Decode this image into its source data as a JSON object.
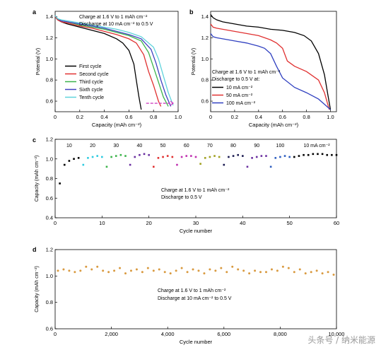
{
  "figure": {
    "watermark": "头条号 / 纳米能源"
  },
  "chart_data": [
    {
      "panel": "a",
      "type": "line",
      "xlabel": "Capacity (mAh cm⁻²)",
      "ylabel": "Potential (V)",
      "xlim": [
        0,
        1.0
      ],
      "ylim": [
        0.5,
        1.45
      ],
      "xticks": [
        "0",
        "0.2",
        "0.4",
        "0.6",
        "0.8",
        "1.0"
      ],
      "yticks": [
        "0.6",
        "0.8",
        "1.0",
        "1.2",
        "1.4"
      ],
      "annotation": [
        "Charge at 1.6 V to 1 mAh cm⁻²",
        "Discharge at 10 mA cm⁻² to 0.5 V"
      ],
      "legend_position": "bottom-left",
      "series": [
        {
          "name": "First cycle",
          "color": "#000000",
          "x": [
            0,
            0.02,
            0.05,
            0.1,
            0.2,
            0.3,
            0.4,
            0.5,
            0.55,
            0.6,
            0.64,
            0.66,
            0.68,
            0.7
          ],
          "y": [
            1.4,
            1.37,
            1.35,
            1.33,
            1.3,
            1.27,
            1.24,
            1.19,
            1.15,
            1.08,
            0.95,
            0.8,
            0.65,
            0.52
          ]
        },
        {
          "name": "Second cycle",
          "color": "#e03030",
          "x": [
            0,
            0.02,
            0.05,
            0.1,
            0.2,
            0.3,
            0.4,
            0.5,
            0.6,
            0.66,
            0.72,
            0.76,
            0.8,
            0.84,
            0.86
          ],
          "y": [
            1.4,
            1.37,
            1.35,
            1.34,
            1.31,
            1.29,
            1.26,
            1.23,
            1.19,
            1.15,
            1.04,
            0.88,
            0.75,
            0.6,
            0.55
          ]
        },
        {
          "name": "Third cycle",
          "color": "#3cb44b",
          "x": [
            0,
            0.02,
            0.05,
            0.1,
            0.2,
            0.3,
            0.4,
            0.5,
            0.6,
            0.7,
            0.76,
            0.8,
            0.84,
            0.88,
            0.92
          ],
          "y": [
            1.41,
            1.38,
            1.36,
            1.35,
            1.32,
            1.3,
            1.28,
            1.25,
            1.22,
            1.17,
            1.06,
            0.92,
            0.78,
            0.64,
            0.55
          ]
        },
        {
          "name": "Sixth cycle",
          "color": "#4040c0",
          "x": [
            0,
            0.02,
            0.05,
            0.1,
            0.2,
            0.3,
            0.4,
            0.5,
            0.6,
            0.7,
            0.78,
            0.82,
            0.86,
            0.9,
            0.94
          ],
          "y": [
            1.41,
            1.38,
            1.36,
            1.35,
            1.33,
            1.31,
            1.29,
            1.26,
            1.23,
            1.19,
            1.09,
            0.96,
            0.8,
            0.66,
            0.55
          ]
        },
        {
          "name": "Tenth cycle",
          "color": "#5fd3dc",
          "x": [
            0,
            0.02,
            0.05,
            0.1,
            0.2,
            0.3,
            0.4,
            0.5,
            0.6,
            0.7,
            0.8,
            0.84,
            0.88,
            0.92,
            0.96
          ],
          "y": [
            1.41,
            1.38,
            1.37,
            1.36,
            1.34,
            1.32,
            1.3,
            1.28,
            1.25,
            1.21,
            1.11,
            1.0,
            0.84,
            0.68,
            0.56
          ]
        }
      ],
      "marker_line": {
        "color": "#d040c0",
        "x": [
          0.74,
          0.96
        ],
        "y": 0.58
      }
    },
    {
      "panel": "b",
      "type": "line",
      "xlabel": "Capacity (mAh cm⁻²)",
      "ylabel": "Potential (V)",
      "xlim": [
        0,
        1.05
      ],
      "ylim": [
        0.5,
        1.45
      ],
      "xticks": [
        "0",
        "0.2",
        "0.4",
        "0.6",
        "0.8",
        "1.0"
      ],
      "yticks": [
        "0.6",
        "0.8",
        "1.0",
        "1.2",
        "1.4"
      ],
      "annotation": [
        "Charge at 1.6 V to 1 mAh cm⁻²",
        "Discharge to 0.5 V at:"
      ],
      "legend_position": "bottom-left",
      "series": [
        {
          "name": "10 mA cm⁻²",
          "color": "#000000",
          "x": [
            0,
            0.02,
            0.05,
            0.1,
            0.2,
            0.3,
            0.4,
            0.5,
            0.6,
            0.7,
            0.78,
            0.84,
            0.9,
            0.95,
            0.98,
            1.0
          ],
          "y": [
            1.42,
            1.39,
            1.37,
            1.35,
            1.33,
            1.31,
            1.3,
            1.28,
            1.27,
            1.25,
            1.22,
            1.17,
            1.05,
            0.85,
            0.65,
            0.52
          ]
        },
        {
          "name": "50 mA cm⁻²",
          "color": "#e03030",
          "x": [
            0,
            0.02,
            0.05,
            0.1,
            0.2,
            0.3,
            0.4,
            0.5,
            0.55,
            0.6,
            0.64,
            0.7,
            0.8,
            0.9,
            0.95,
            0.99
          ],
          "y": [
            1.33,
            1.3,
            1.29,
            1.28,
            1.26,
            1.24,
            1.22,
            1.18,
            1.15,
            1.1,
            0.98,
            0.93,
            0.88,
            0.8,
            0.68,
            0.52
          ]
        },
        {
          "name": "100 mA cm⁻²",
          "color": "#3040c0",
          "x": [
            0,
            0.02,
            0.05,
            0.1,
            0.2,
            0.3,
            0.4,
            0.45,
            0.5,
            0.55,
            0.6,
            0.7,
            0.8,
            0.9,
            0.96,
            1.0
          ],
          "y": [
            1.24,
            1.21,
            1.2,
            1.19,
            1.17,
            1.15,
            1.12,
            1.1,
            1.05,
            0.93,
            0.82,
            0.73,
            0.68,
            0.62,
            0.56,
            0.52
          ]
        }
      ]
    },
    {
      "panel": "c",
      "type": "scatter",
      "xlabel": "Cycle number",
      "ylabel": "Capacity (mAh cm⁻²)",
      "xlim": [
        0,
        60
      ],
      "ylim": [
        0.4,
        1.2
      ],
      "xticks": [
        "0",
        "10",
        "20",
        "30",
        "40",
        "50",
        "60"
      ],
      "yticks": [
        "0.4",
        "0.6",
        "0.8",
        "1.0",
        "1.2"
      ],
      "annotation": [
        "Charge at 1.6 V to 1 mAh cm⁻²",
        "Discharge to 0.5 V"
      ],
      "rate_label_suffix": "mA cm⁻²",
      "groups": [
        {
          "label": "10",
          "color": "#000000",
          "x": [
            1,
            2,
            3,
            4,
            5
          ],
          "y": [
            0.75,
            0.94,
            0.98,
            1.0,
            1.01
          ]
        },
        {
          "label": "20",
          "color": "#2ecbe0",
          "x": [
            6,
            7,
            8,
            9,
            10
          ],
          "y": [
            0.94,
            1.01,
            1.02,
            1.03,
            1.02
          ]
        },
        {
          "label": "30",
          "color": "#3cb44b",
          "x": [
            11,
            12,
            13,
            14,
            15
          ],
          "y": [
            0.92,
            1.02,
            1.03,
            1.04,
            1.03
          ]
        },
        {
          "label": "40",
          "color": "#6a2fa0",
          "x": [
            16,
            17,
            18,
            19,
            20
          ],
          "y": [
            0.94,
            1.02,
            1.04,
            1.05,
            1.04
          ]
        },
        {
          "label": "50",
          "color": "#e03030",
          "x": [
            21,
            22,
            23,
            24,
            25
          ],
          "y": [
            0.92,
            1.01,
            1.02,
            1.03,
            1.02
          ]
        },
        {
          "label": "60",
          "color": "#c030b0",
          "x": [
            26,
            27,
            28,
            29,
            30
          ],
          "y": [
            0.94,
            1.02,
            1.03,
            1.03,
            1.02
          ]
        },
        {
          "label": "70",
          "color": "#a0a020",
          "x": [
            31,
            32,
            33,
            34,
            35
          ],
          "y": [
            0.95,
            1.01,
            1.02,
            1.03,
            1.02
          ]
        },
        {
          "label": "80",
          "color": "#1a1a50",
          "x": [
            36,
            37,
            38,
            39,
            40
          ],
          "y": [
            0.94,
            1.02,
            1.03,
            1.04,
            1.03
          ]
        },
        {
          "label": "90",
          "color": "#6a2fa0",
          "x": [
            41,
            42,
            43,
            44,
            45
          ],
          "y": [
            0.92,
            1.01,
            1.02,
            1.03,
            1.03
          ]
        },
        {
          "label": "100",
          "color": "#2f5fc0",
          "x": [
            46,
            47,
            48,
            49,
            50
          ],
          "y": [
            0.92,
            1.01,
            1.02,
            1.03,
            1.02
          ]
        },
        {
          "label": "10",
          "color": "#000000",
          "x": [
            51,
            52,
            53,
            54,
            55,
            56,
            57,
            58,
            59,
            60
          ],
          "y": [
            1.02,
            1.03,
            1.04,
            1.04,
            1.05,
            1.05,
            1.05,
            1.04,
            1.04,
            1.04
          ]
        }
      ]
    },
    {
      "panel": "d",
      "type": "scatter",
      "xlabel": "Cycle number",
      "ylabel": "Capacity (mAh cm⁻²)",
      "xlim": [
        0,
        10000
      ],
      "ylim": [
        0.6,
        1.2
      ],
      "xticks": [
        "0",
        "2,000",
        "4,000",
        "6,000",
        "8,000",
        "10,000"
      ],
      "yticks": [
        "0.6",
        "0.8",
        "1.0",
        "1.2"
      ],
      "annotation": [
        "Charge at 1.6 V to 1 mAh cm⁻²",
        "Discharge at 10 mA cm⁻² to 0.5 V"
      ],
      "color": "#d99a40",
      "x": [
        100,
        300,
        500,
        700,
        900,
        1100,
        1300,
        1500,
        1700,
        1900,
        2100,
        2300,
        2500,
        2700,
        2900,
        3100,
        3300,
        3500,
        3700,
        3900,
        4100,
        4300,
        4500,
        4700,
        4900,
        5100,
        5300,
        5500,
        5700,
        5900,
        6100,
        6300,
        6500,
        6700,
        6900,
        7100,
        7300,
        7500,
        7700,
        7900,
        8100,
        8300,
        8500,
        8700,
        8900,
        9100,
        9300,
        9500,
        9700,
        9900
      ],
      "y": [
        1.04,
        1.05,
        1.04,
        1.03,
        1.04,
        1.07,
        1.05,
        1.07,
        1.04,
        1.03,
        1.04,
        1.06,
        1.02,
        1.04,
        1.05,
        1.03,
        1.06,
        1.04,
        1.05,
        1.03,
        1.02,
        1.04,
        1.06,
        1.03,
        1.05,
        1.04,
        1.02,
        1.05,
        1.04,
        1.06,
        1.03,
        1.07,
        1.05,
        1.04,
        1.02,
        1.04,
        1.03,
        1.03,
        1.05,
        1.04,
        1.07,
        1.06,
        1.03,
        1.05,
        1.02,
        1.03,
        1.04,
        1.02,
        1.03,
        1.01
      ]
    }
  ]
}
